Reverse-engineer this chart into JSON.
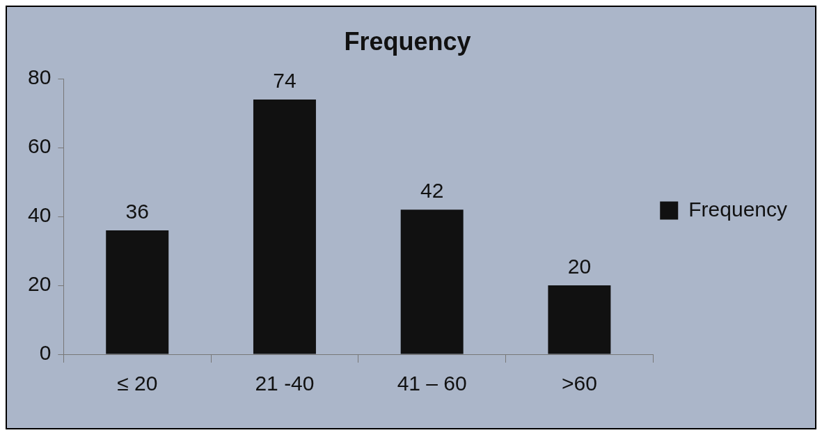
{
  "chart_data": {
    "type": "bar",
    "title": "Frequency",
    "categories": [
      "≤ 20",
      "21 -40",
      "41 – 60",
      ">60"
    ],
    "series": [
      {
        "name": "Frequency",
        "color": "#111111",
        "values": [
          36,
          74,
          42,
          20
        ]
      }
    ],
    "ylim": [
      0,
      80
    ],
    "yticks": [
      0,
      20,
      40,
      60,
      80
    ],
    "grid": false,
    "legend": "right",
    "data_labels": true
  }
}
